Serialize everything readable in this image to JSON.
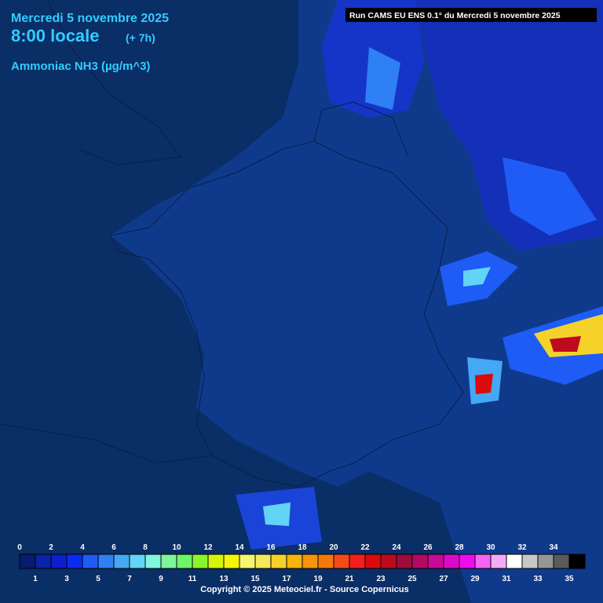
{
  "header": {
    "date": "Mercredi 5 novembre 2025",
    "time": "8:00 locale",
    "offset": "(+ 7h)",
    "variable": "Ammoniac NH3 (µg/m^3)",
    "run": "Run CAMS EU ENS 0.1° du Mercredi 5 novembre 2025"
  },
  "legend": {
    "ticks": [
      0,
      1,
      2,
      3,
      4,
      5,
      6,
      7,
      8,
      9,
      10,
      11,
      12,
      13,
      14,
      15,
      16,
      17,
      18,
      19,
      20,
      21,
      22,
      23,
      24,
      25,
      26,
      27,
      28,
      29,
      30,
      31,
      32,
      33,
      34,
      35
    ],
    "colors": [
      "#061c6e",
      "#0a24a8",
      "#0a1fd0",
      "#0a2cf0",
      "#1e5cf5",
      "#2f7ff5",
      "#44a8f5",
      "#62d4f5",
      "#80f5e0",
      "#7ef59a",
      "#6ef56a",
      "#8cf52a",
      "#d4f50a",
      "#f5f50a",
      "#f5f56e",
      "#f5e85a",
      "#f5d22a",
      "#f5b40a",
      "#f5960a",
      "#f5780a",
      "#f54a1a",
      "#f51e1e",
      "#dc0a0a",
      "#be0a1e",
      "#a00a3c",
      "#b40a64",
      "#c80a96",
      "#dc0ac8",
      "#f00af0",
      "#f564f5",
      "#f5aaf5",
      "#ffffff",
      "#c8c8c8",
      "#969696",
      "#5a5a5a",
      "#000000"
    ]
  },
  "footer": {
    "copyright": "Copyright © 2025 Meteociel.fr - Source Copernicus"
  }
}
